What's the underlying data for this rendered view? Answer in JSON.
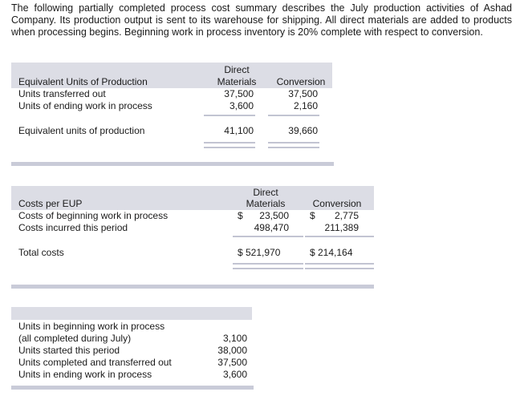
{
  "intro": "The following partially completed process cost summary describes the July production activities of Ashad Company. Its production output is sent to its warehouse for shipping. All direct materials are added to products when processing begins. Beginning work in process inventory is 20% complete with respect to conversion.",
  "table1": {
    "title": "Equivalent Units of Production",
    "col1_line1": "Direct",
    "col1_line2": "Materials",
    "col2": "Conversion",
    "rows": [
      {
        "label": "Units transferred out",
        "dm": "37,500",
        "conv": "37,500"
      },
      {
        "label": "Units of ending work in process",
        "dm": "3,600",
        "conv": "2,160"
      }
    ],
    "total_label": "Equivalent units of production",
    "total_dm": "41,100",
    "total_conv": "39,660"
  },
  "table2": {
    "title": "Costs per EUP",
    "col1_line1": "Direct",
    "col1_line2": "Materials",
    "col2": "Conversion",
    "rows": [
      {
        "label": "Costs of beginning work in process",
        "dm_sign": "$",
        "dm": "23,500",
        "conv_sign": "$",
        "conv": "2,775"
      },
      {
        "label": "Costs incurred this period",
        "dm_sign": "",
        "dm": "498,470",
        "conv_sign": "",
        "conv": "211,389"
      }
    ],
    "total_label": "Total costs",
    "total_dm": "$ 521,970",
    "total_conv": "$ 214,164"
  },
  "table3": {
    "rows": [
      {
        "label": "Units in beginning work in process",
        "value": ""
      },
      {
        "label": "(all completed during July)",
        "value": "3,100"
      },
      {
        "label": "Units started this period",
        "value": "38,000"
      },
      {
        "label": "Units completed and transferred out",
        "value": "37,500"
      },
      {
        "label": "Units in ending work in process",
        "value": "3,600"
      }
    ]
  }
}
